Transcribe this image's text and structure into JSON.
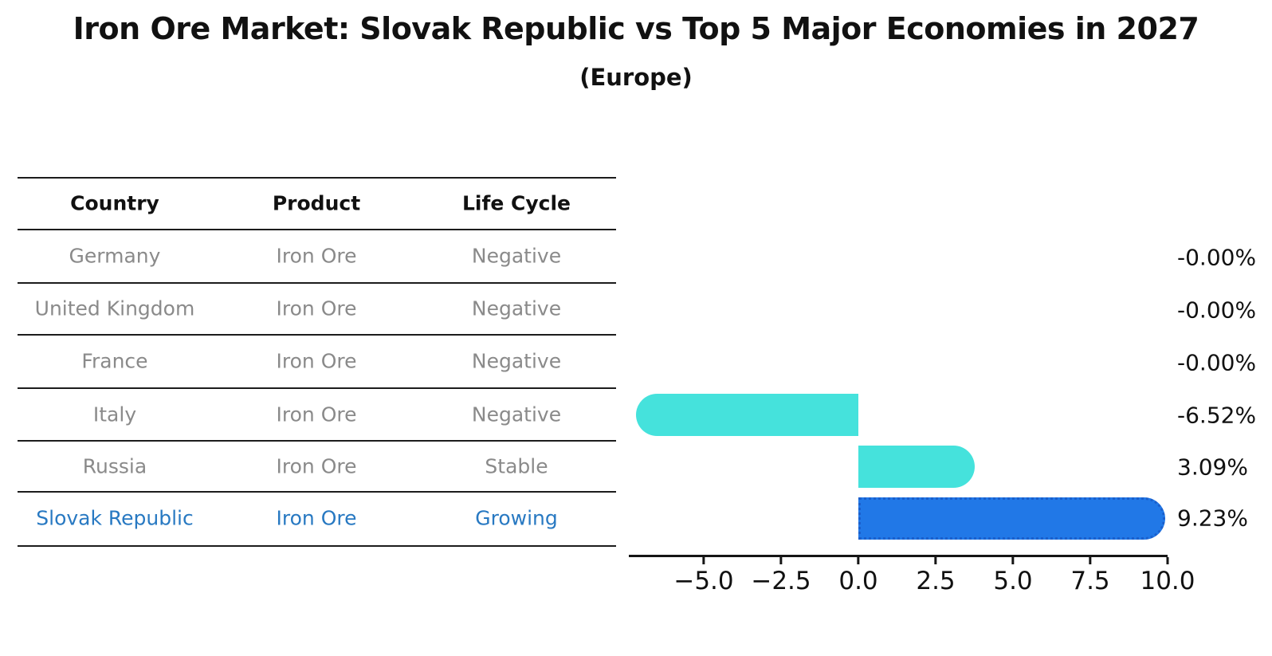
{
  "title": "Iron Ore Market: Slovak Republic vs Top 5 Major Economies in 2027",
  "subtitle": "(Europe)",
  "table": {
    "columns": [
      "Country",
      "Product",
      "Life Cycle"
    ],
    "rows": [
      {
        "country": "Germany",
        "product": "Iron Ore",
        "life_cycle": "Negative"
      },
      {
        "country": "United Kingdom",
        "product": "Iron Ore",
        "life_cycle": "Negative"
      },
      {
        "country": "France",
        "product": "Iron Ore",
        "life_cycle": "Negative"
      },
      {
        "country": "Italy",
        "product": "Iron Ore",
        "life_cycle": "Negative"
      },
      {
        "country": "Russia",
        "product": "Iron Ore",
        "life_cycle": "Stable"
      },
      {
        "country": "Slovak Republic",
        "product": "Iron Ore",
        "life_cycle": "Growing"
      }
    ],
    "highlight_row_index": 5
  },
  "chart_data": {
    "type": "bar",
    "orientation": "horizontal",
    "title": "Iron Ore Market: Slovak Republic vs Top 5 Major Economies in 2027 (Europe)",
    "categories": [
      "Germany",
      "United Kingdom",
      "France",
      "Italy",
      "Russia",
      "Slovak Republic"
    ],
    "values": [
      -0.0,
      -0.0,
      -0.0,
      -6.52,
      3.09,
      9.23
    ],
    "value_labels": [
      "-0.00%",
      "-0.00%",
      "-0.00%",
      "-6.52%",
      "3.09%",
      "9.23%"
    ],
    "unit": "%",
    "x_tick_values": [
      -5.0,
      -2.5,
      0.0,
      2.5,
      5.0,
      7.5,
      10.0
    ],
    "x_tick_labels": [
      "−5.0",
      "−2.5",
      "0.0",
      "2.5",
      "5.0",
      "7.5",
      "10.0"
    ],
    "xlim": [
      -7.45,
      10.0
    ],
    "grid": false,
    "legend": false,
    "highlight_index": 5,
    "colors": {
      "bar_default": "#45E2DC",
      "bar_highlight": "#2178E7",
      "bar_highlight_border": "#1A5FCC",
      "text_gray": "#8a8a8a",
      "text_blue": "#2879C2",
      "axis": "#151515"
    }
  }
}
